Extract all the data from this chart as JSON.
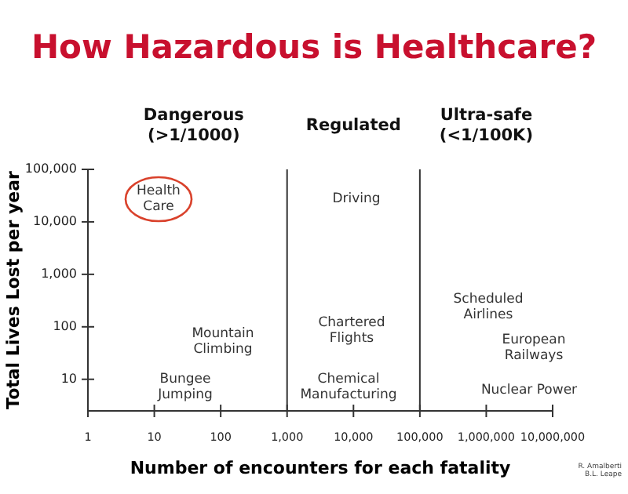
{
  "chart_data": {
    "type": "scatter",
    "title": "How Hazardous is Healthcare?",
    "xlabel": "Number of encounters for each fatality",
    "ylabel": "Total Lives Lost per year",
    "log": "xy",
    "xlim": [
      1,
      10000000
    ],
    "ylim": [
      2.5,
      100000
    ],
    "xticks": [
      {
        "value": 1,
        "label": "1"
      },
      {
        "value": 10,
        "label": "10"
      },
      {
        "value": 100,
        "label": "100"
      },
      {
        "value": 1000,
        "label": "1,000"
      },
      {
        "value": 10000,
        "label": "10,000"
      },
      {
        "value": 100000,
        "label": "100,000"
      },
      {
        "value": 1000000,
        "label": "1,000,000"
      },
      {
        "value": 10000000,
        "label": "10,000,000"
      }
    ],
    "yticks": [
      {
        "value": 10,
        "label": "10"
      },
      {
        "value": 100,
        "label": "100"
      },
      {
        "value": 1000,
        "label": "1,000"
      },
      {
        "value": 10000,
        "label": "10,000"
      },
      {
        "value": 100000,
        "label": "100,000"
      }
    ],
    "ref_lines": [
      {
        "axis": "x",
        "value": 1000
      },
      {
        "axis": "x",
        "value": 100000
      }
    ],
    "annotations": [
      "Dangerous\n(>1/1000)",
      "Regulated",
      "Ultra-safe\n(<1/100K)",
      "Health\nCare",
      "Driving",
      "Mountain\nClimbing",
      "Bungee\nJumping",
      "Chartered\nFlights",
      "Chemical\nManufacturing",
      "Scheduled\nAirlines",
      "European\nRailways",
      "Nuclear Power",
      "R. Amalberti\nB.L. Leape"
    ]
  }
}
